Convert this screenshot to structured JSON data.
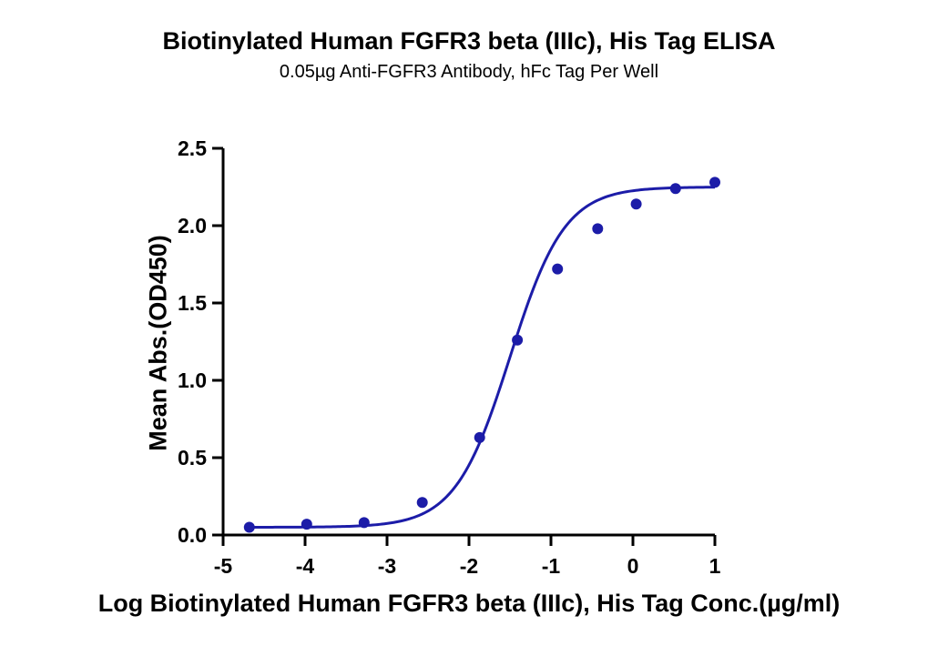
{
  "chart_data": {
    "type": "scatter",
    "title": "Biotinylated Human FGFR3 beta (IIIc), His Tag ELISA",
    "subtitle": "0.05µg Anti-FGFR3 Antibody, hFc Tag Per Well",
    "xlabel": "Log Biotinylated Human FGFR3 beta (IIIc), His Tag Conc.(µg/ml)",
    "ylabel": "Mean Abs.(OD450)",
    "xlim": [
      -5,
      1
    ],
    "ylim": [
      0,
      2.5
    ],
    "x_ticks": [
      "-5",
      "-4",
      "-3",
      "-2",
      "-1",
      "0",
      "1"
    ],
    "y_ticks": [
      "0.0",
      "0.5",
      "1.0",
      "1.5",
      "2.0",
      "2.5"
    ],
    "grid": false,
    "legend": "none",
    "colors": {
      "series": "#1c1ca8",
      "axis": "#000000"
    },
    "series": [
      {
        "points": [
          {
            "x": -4.68,
            "y": 0.05
          },
          {
            "x": -3.98,
            "y": 0.07
          },
          {
            "x": -3.28,
            "y": 0.08
          },
          {
            "x": -2.57,
            "y": 0.21
          },
          {
            "x": -1.87,
            "y": 0.63
          },
          {
            "x": -1.41,
            "y": 1.26
          },
          {
            "x": -0.92,
            "y": 1.72
          },
          {
            "x": -0.43,
            "y": 1.98
          },
          {
            "x": 0.04,
            "y": 2.14
          },
          {
            "x": 0.52,
            "y": 2.24
          },
          {
            "x": 1.0,
            "y": 2.28
          }
        ],
        "fit": {
          "model": "4PL",
          "bottom": 0.05,
          "top": 2.25,
          "log_ec50": -1.5,
          "hill": 1.3
        }
      }
    ]
  }
}
